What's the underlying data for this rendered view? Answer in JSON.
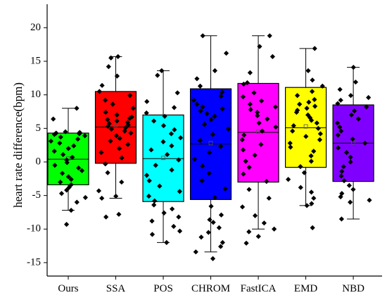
{
  "chart_data": {
    "type": "box",
    "title": "",
    "xlabel": "",
    "ylabel": "heart rate difference(bpm)",
    "ylim": [
      -17,
      23.5
    ],
    "yticks": [
      -15,
      -10,
      -5,
      0,
      5,
      10,
      15,
      20
    ],
    "grid": false,
    "legend": "none",
    "categories": [
      "Ours",
      "SSA",
      "POS",
      "CHROM",
      "FastICA",
      "EMD",
      "NBD"
    ],
    "series": [
      {
        "color": "#00ff00",
        "q1": -3.4,
        "median": 0.4,
        "q3": 4.3,
        "mean": 0.5,
        "whisker_low": -7.2,
        "whisker_high": 8.0,
        "points": [
          8.0,
          6.4,
          4.5,
          4.4,
          4.3,
          4.2,
          4.1,
          3.9,
          3.7,
          3.4,
          3.1,
          2.8,
          2.4,
          2.0,
          1.6,
          1.1,
          0.7,
          0.3,
          -0.1,
          -0.5,
          -0.9,
          -1.3,
          -1.7,
          -2.2,
          -2.6,
          -3.0,
          -3.4,
          -3.8,
          -4.2,
          -4.7,
          -5.3,
          -6.0,
          -7.2,
          -9.3
        ]
      },
      {
        "color": "#ff0000",
        "q1": -0.2,
        "median": 5.2,
        "q3": 10.5,
        "mean": 5.5,
        "whisker_low": -5.4,
        "whisker_high": 15.7,
        "points": [
          15.7,
          15.5,
          14.2,
          12.8,
          11.4,
          10.5,
          9.9,
          9.2,
          8.6,
          8.0,
          7.4,
          7.0,
          6.7,
          6.5,
          6.3,
          6.1,
          5.9,
          5.7,
          5.5,
          5.3,
          5.1,
          4.9,
          4.6,
          4.3,
          3.9,
          3.5,
          3.1,
          2.6,
          2.0,
          1.4,
          0.6,
          -0.3,
          -1.6,
          -3.0,
          -4.3,
          -5.1,
          -5.4,
          -7.8,
          -8.2
        ]
      },
      {
        "color": "#00ffff",
        "q1": -5.9,
        "median": 0.5,
        "q3": 7.0,
        "mean": 0.6,
        "whisker_low": -12.0,
        "whisker_high": 13.6,
        "points": [
          13.6,
          12.9,
          10.3,
          9.0,
          8.1,
          7.3,
          6.8,
          6.1,
          5.4,
          4.8,
          4.2,
          3.6,
          3.0,
          2.4,
          1.8,
          1.1,
          0.3,
          -0.5,
          -1.2,
          -2.0,
          -2.8,
          -3.6,
          -4.4,
          -5.1,
          -5.8,
          -6.4,
          -7.0,
          -7.6,
          -8.2,
          -8.8,
          -9.6,
          -10.3,
          -10.8,
          -12.0
        ]
      },
      {
        "color": "#0000ff",
        "q1": -5.6,
        "median": 2.7,
        "q3": 10.9,
        "mean": 2.8,
        "whisker_low": -13.4,
        "whisker_high": 18.8,
        "points": [
          18.8,
          16.2,
          13.6,
          12.4,
          11.3,
          10.4,
          9.8,
          9.2,
          8.6,
          8.2,
          7.9,
          7.6,
          7.2,
          6.8,
          6.3,
          5.6,
          4.9,
          4.1,
          3.2,
          2.3,
          1.4,
          0.4,
          -0.6,
          -1.7,
          -2.8,
          -4.0,
          -5.3,
          -6.6,
          -7.9,
          -8.6,
          -9.0,
          -9.8,
          -10.5,
          -11.2,
          -12.0,
          -12.6,
          -13.4,
          -14.4
        ]
      },
      {
        "color": "#ff00ff",
        "q1": -3.0,
        "median": 4.4,
        "q3": 11.7,
        "mean": 4.5,
        "whisker_low": -10.0,
        "whisker_high": 18.8,
        "points": [
          18.8,
          17.2,
          15.7,
          13.3,
          11.8,
          11.6,
          10.3,
          9.7,
          9.1,
          8.6,
          8.2,
          7.8,
          7.4,
          6.9,
          6.4,
          5.8,
          5.2,
          4.6,
          4.0,
          3.3,
          2.6,
          1.8,
          1.0,
          0.1,
          -0.8,
          -1.8,
          -2.9,
          -4.1,
          -5.4,
          -6.7,
          -8.0,
          -9.1,
          -10.0,
          -10.4,
          -11.1,
          -12.1
        ]
      },
      {
        "color": "#ffff00",
        "q1": -0.8,
        "median": 5.1,
        "q3": 11.1,
        "mean": 5.3,
        "whisker_low": -6.5,
        "whisker_high": 16.9,
        "points": [
          16.9,
          13.6,
          12.2,
          11.3,
          10.5,
          9.9,
          9.3,
          8.9,
          8.6,
          8.3,
          8.0,
          7.7,
          7.4,
          7.0,
          6.6,
          6.2,
          5.8,
          5.4,
          5.0,
          4.6,
          4.2,
          3.8,
          3.3,
          2.8,
          2.2,
          1.6,
          0.9,
          0.1,
          -0.7,
          -1.6,
          -2.6,
          -3.8,
          -4.5,
          -5.4,
          -6.2,
          -6.5,
          -9.8
        ]
      },
      {
        "color": "#8000ff",
        "q1": -2.9,
        "median": 2.8,
        "q3": 8.5,
        "mean": 2.9,
        "whisker_low": -8.5,
        "whisker_high": 14.1,
        "points": [
          14.1,
          11.9,
          10.8,
          9.9,
          9.6,
          9.2,
          8.7,
          8.2,
          7.6,
          7.0,
          6.4,
          5.8,
          5.2,
          4.6,
          4.0,
          3.4,
          2.8,
          2.1,
          1.4,
          0.7,
          0.0,
          -0.7,
          -1.4,
          -2.1,
          -2.8,
          -3.5,
          -4.1,
          -4.7,
          -5.2,
          -5.7,
          -6.0,
          -8.5
        ]
      }
    ]
  }
}
